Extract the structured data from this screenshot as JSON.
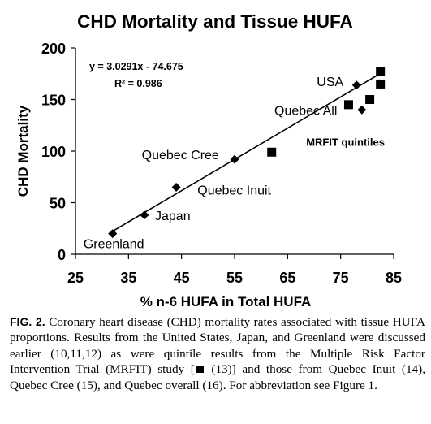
{
  "chart_data": {
    "type": "scatter",
    "title": "CHD Mortality and Tissue HUFA",
    "xlabel": "% n-6 HUFA in Total HUFA",
    "ylabel": "CHD Mortality",
    "xlim": [
      25,
      85
    ],
    "ylim": [
      0,
      200
    ],
    "xticks": [
      25,
      35,
      45,
      55,
      65,
      75,
      85
    ],
    "yticks": [
      0,
      50,
      100,
      150,
      200
    ],
    "grid": false,
    "equation": "y = 3.0291x - 74.675",
    "r2": "R² = 0.986",
    "trendline": {
      "x": [
        32,
        82.5
      ],
      "y": [
        22.3,
        175.2
      ]
    },
    "diamonds": [
      {
        "name": "Greenland",
        "x": 32,
        "y": 20
      },
      {
        "name": "Japan",
        "x": 38,
        "y": 38
      },
      {
        "name": "Quebec Inuit",
        "x": 44,
        "y": 65
      },
      {
        "name": "Quebec Cree",
        "x": 55,
        "y": 92
      },
      {
        "name": "Quebec All",
        "x": 79,
        "y": 140
      },
      {
        "name": "USA",
        "x": 78,
        "y": 164
      }
    ],
    "squares": [
      {
        "name": "MRFIT quintile",
        "x": 62,
        "y": 99
      },
      {
        "name": "MRFIT quintile",
        "x": 76.5,
        "y": 145
      },
      {
        "name": "MRFIT quintile",
        "x": 80.5,
        "y": 150
      },
      {
        "name": "MRFIT quintile",
        "x": 82.5,
        "y": 165
      },
      {
        "name": "MRFIT quintile",
        "x": 82.5,
        "y": 177
      }
    ],
    "labels": [
      {
        "text": "Greenland",
        "x": 26.5,
        "y": 6,
        "bold": false
      },
      {
        "text": "Japan",
        "x": 40,
        "y": 33,
        "bold": false
      },
      {
        "text": "Quebec Inuit",
        "x": 48,
        "y": 58,
        "bold": false
      },
      {
        "text": "Quebec Cree",
        "x": 37.5,
        "y": 92,
        "bold": false
      },
      {
        "text": "Quebec All",
        "x": 62.5,
        "y": 135,
        "bold": false
      },
      {
        "text": "USA",
        "x": 70.5,
        "y": 163,
        "bold": false
      },
      {
        "text": "MRFIT quintiles",
        "x": 68.5,
        "y": 105,
        "bold": true
      }
    ]
  },
  "caption": {
    "label": "FIG. 2.",
    "text_before_square": "Coronary heart disease (CHD) mortality rates associated with tissue HUFA proportions. Results from the United States, Japan, and Greenland were discussed earlier (10,11,12) as were quintile results from the Multiple Risk Factor Intervention Trial (MRFIT) study [",
    "text_after_square": "(13)] and those from Quebec Inuit (14), Quebec Cree (15), and Quebec overall (16). For abbreviation see Figure 1."
  }
}
